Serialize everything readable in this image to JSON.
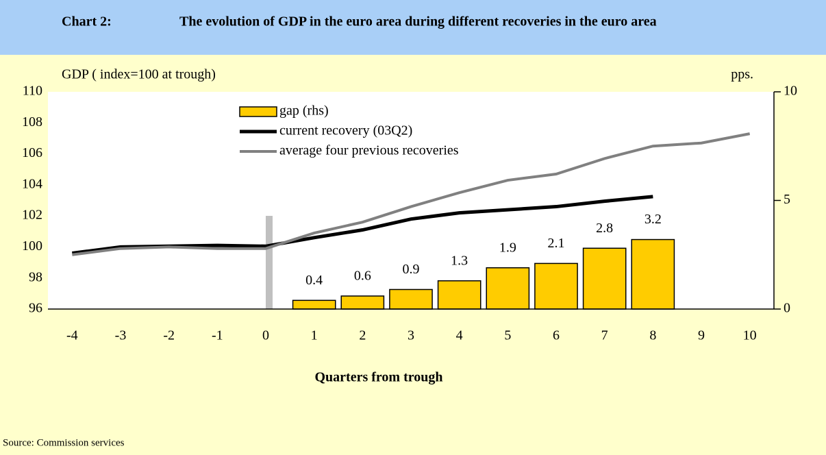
{
  "chart_data": {
    "type": "combo",
    "header_label": "Chart 2:",
    "title": "The evolution of GDP in the euro area during different recoveries in the euro area",
    "y_label": "GDP ( index=100 at trough)",
    "y2_label": "pps.",
    "x_label": "Quarters from trough",
    "source": "Source: Commission services",
    "categories": [
      "-4",
      "-3",
      "-2",
      "-1",
      "0",
      "1",
      "2",
      "3",
      "4",
      "5",
      "6",
      "7",
      "8",
      "9",
      "10"
    ],
    "ylim": [
      96,
      110
    ],
    "yticks": [
      96,
      98,
      100,
      102,
      104,
      106,
      108,
      110
    ],
    "y2lim": [
      0,
      10
    ],
    "y2ticks": [
      0,
      5,
      10
    ],
    "series": [
      {
        "name": "gap (rhs)",
        "type": "bar",
        "axis": "y2",
        "color": "#ffcc00",
        "values": [
          null,
          null,
          null,
          null,
          null,
          0.4,
          0.6,
          0.9,
          1.3,
          1.9,
          2.1,
          2.8,
          3.2,
          null,
          null
        ]
      },
      {
        "name": "current recovery (03Q2)",
        "type": "line",
        "color": "#000000",
        "values": [
          99.6,
          100.0,
          100.05,
          100.1,
          100.05,
          100.6,
          101.1,
          101.8,
          102.2,
          102.4,
          102.6,
          102.95,
          103.25,
          null,
          null
        ]
      },
      {
        "name": "average four previous recoveries",
        "type": "line",
        "color": "#808080",
        "values": [
          99.5,
          99.9,
          100.0,
          99.9,
          99.9,
          100.9,
          101.6,
          102.6,
          103.5,
          104.3,
          104.7,
          105.7,
          106.5,
          106.7,
          107.3
        ]
      }
    ]
  }
}
